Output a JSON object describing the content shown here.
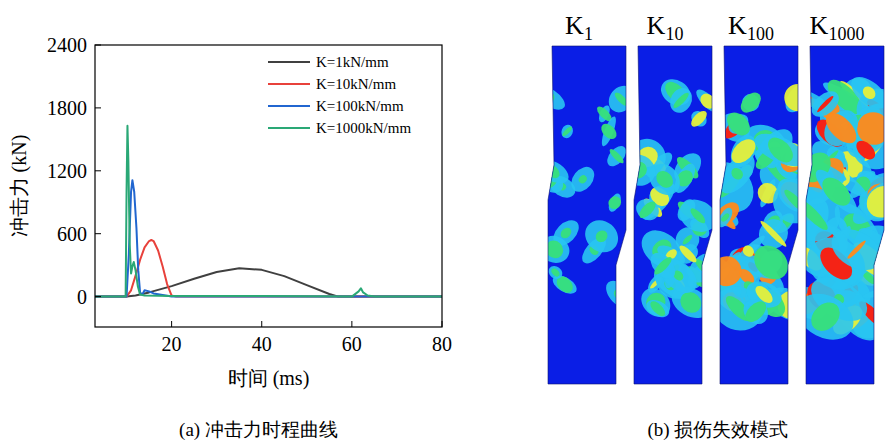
{
  "chart_data": [
    {
      "type": "line",
      "title": "(a) 冲击力时程曲线",
      "x_label": "时间 (ms)",
      "y_label": "冲击力 (kN)",
      "xlim": [
        3,
        80
      ],
      "xticks": [
        20,
        40,
        60,
        80
      ],
      "ylim": [
        -290,
        2400
      ],
      "yticks": [
        0,
        600,
        1200,
        1800,
        2400
      ],
      "grid": false,
      "legend": "upper right",
      "series": [
        {
          "name": "K=1kN/mm",
          "color": "#404040",
          "x": [
            3,
            9,
            10,
            12,
            15,
            20,
            25,
            30,
            35,
            40,
            45,
            50,
            55,
            57,
            60,
            80
          ],
          "values": [
            0,
            0,
            0,
            10,
            40,
            100,
            170,
            235,
            270,
            255,
            195,
            110,
            25,
            0,
            0,
            0
          ]
        },
        {
          "name": "K=10kN/mm",
          "color": "#e8413b",
          "x": [
            3,
            9.5,
            10,
            11,
            12,
            13,
            14,
            15,
            15.5,
            16,
            17,
            18,
            19,
            20,
            21,
            80
          ],
          "values": [
            0,
            0,
            0,
            60,
            200,
            350,
            470,
            530,
            540,
            530,
            440,
            290,
            120,
            10,
            0,
            0
          ]
        },
        {
          "name": "K=100kN/mm",
          "color": "#2166d0",
          "x": [
            3,
            10,
            10.5,
            11,
            11.3,
            11.7,
            12.2,
            12.6,
            13,
            13.5,
            14,
            15,
            16,
            18,
            20,
            80
          ],
          "values": [
            0,
            0,
            400,
            1000,
            1110,
            1000,
            650,
            250,
            40,
            20,
            60,
            50,
            30,
            15,
            0,
            0
          ]
        },
        {
          "name": "K=1000kN/mm",
          "color": "#2aa876",
          "x": [
            3,
            9.8,
            10,
            10.2,
            10.4,
            10.7,
            11,
            11.3,
            11.6,
            12,
            12.5,
            13,
            14,
            20,
            40,
            60,
            61.5,
            62,
            62.5,
            63.5,
            65,
            80
          ],
          "values": [
            0,
            0,
            1000,
            1630,
            1300,
            500,
            220,
            290,
            330,
            250,
            100,
            20,
            10,
            5,
            5,
            0,
            50,
            80,
            40,
            10,
            0,
            0
          ]
        }
      ]
    },
    {
      "type": "image",
      "title": "(b) 损伤失效模式",
      "categories": [
        "K1",
        "K10",
        "K100",
        "K1000"
      ]
    }
  ]
}
